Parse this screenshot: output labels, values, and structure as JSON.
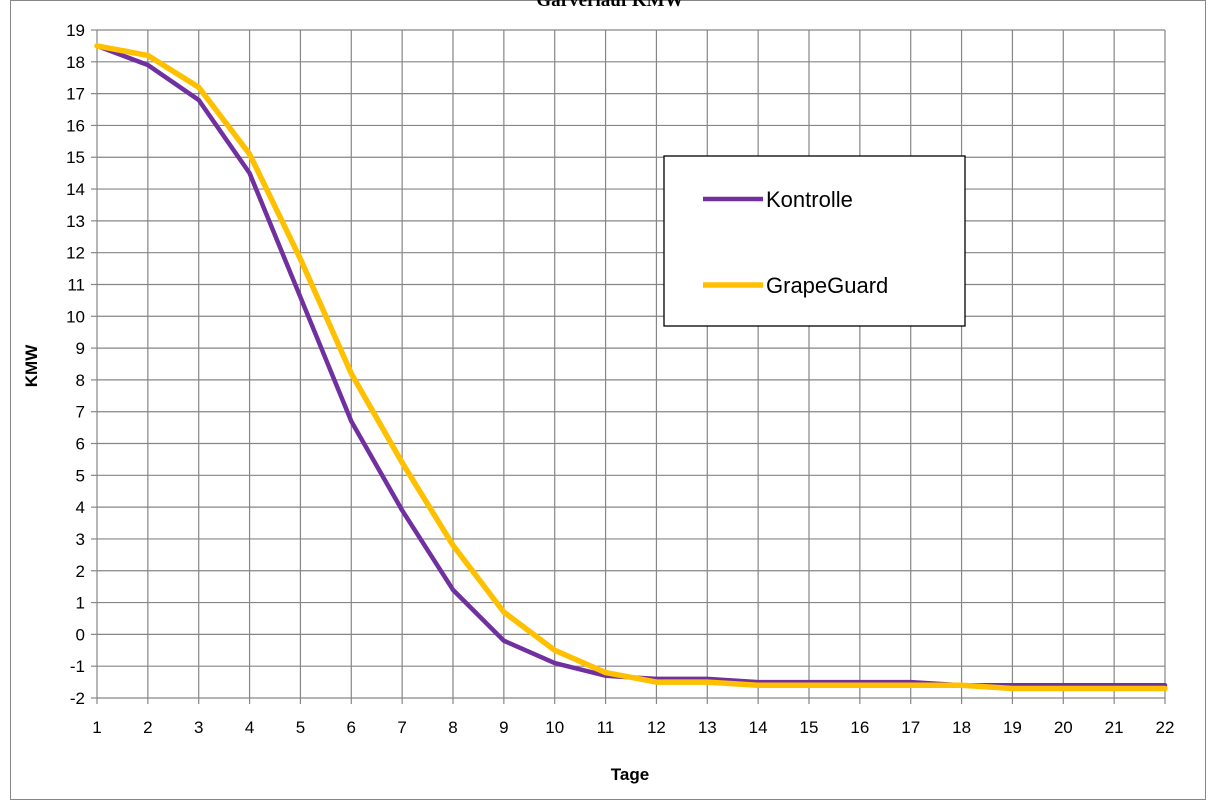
{
  "chart_data": {
    "type": "line",
    "title": "Gärverlauf KMW",
    "xlabel": "Tage",
    "ylabel": "KMW",
    "x": [
      1,
      2,
      3,
      4,
      5,
      6,
      7,
      8,
      9,
      10,
      11,
      12,
      13,
      14,
      15,
      16,
      17,
      18,
      19,
      20,
      21,
      22
    ],
    "xlim": [
      1,
      22
    ],
    "ylim": [
      -2,
      19
    ],
    "yticks": [
      -2,
      -1,
      0,
      1,
      2,
      3,
      4,
      5,
      6,
      7,
      8,
      9,
      10,
      11,
      12,
      13,
      14,
      15,
      16,
      17,
      18,
      19
    ],
    "grid": true,
    "legend_position": "upper-right",
    "series": [
      {
        "name": "Kontrolle",
        "color": "#7030a0",
        "values": [
          18.5,
          17.9,
          16.8,
          14.5,
          10.6,
          6.7,
          3.9,
          1.4,
          -0.2,
          -0.9,
          -1.3,
          -1.4,
          -1.4,
          -1.5,
          -1.5,
          -1.5,
          -1.5,
          -1.6,
          -1.6,
          -1.6,
          -1.6,
          -1.6
        ]
      },
      {
        "name": "GrapeGuard",
        "color": "#ffc000",
        "values": [
          18.5,
          18.2,
          17.2,
          15.1,
          11.8,
          8.2,
          5.4,
          2.8,
          0.7,
          -0.5,
          -1.2,
          -1.5,
          -1.5,
          -1.6,
          -1.6,
          -1.6,
          -1.6,
          -1.6,
          -1.7,
          -1.7,
          -1.7,
          -1.7
        ]
      }
    ]
  },
  "colors": {
    "grid": "#868686",
    "frame": "#868686"
  }
}
